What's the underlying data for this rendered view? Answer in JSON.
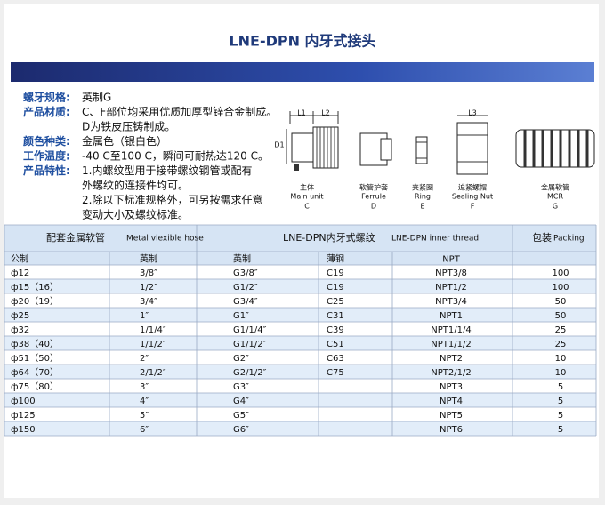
{
  "header": {
    "title": "LNE-DPN 内牙式接头"
  },
  "specs": [
    {
      "label": "螺牙规格:",
      "lines": [
        "英制G"
      ]
    },
    {
      "label": "产品材质:",
      "lines": [
        "C、F部位均采用优质加厚型锌合金制成。",
        "D为铁皮压铸制成。"
      ]
    },
    {
      "label": "颜色种类:",
      "lines": [
        "金属色（银白色）"
      ]
    },
    {
      "label": "工作温度:",
      "lines": [
        "-40 C至100 C，瞬间可耐热达120 C。"
      ]
    },
    {
      "label": "产品特性:",
      "lines": [
        "1.内螺纹型用于接带螺纹钢管或配有",
        "外螺纹的连接件均可。",
        "2.除以下标准规格外，可另按需求任意",
        "变动大小及螺纹标准。"
      ]
    }
  ],
  "diagram": {
    "dims": [
      "L1",
      "L2",
      "D1",
      "L3"
    ],
    "parts": [
      {
        "name_cn": "主体",
        "name_en": "Main unit",
        "code": "C"
      },
      {
        "name_cn": "软管护套",
        "name_en": "Ferrule",
        "code": "D"
      },
      {
        "name_cn": "夹紧圈",
        "name_en": "Ring",
        "code": "E"
      },
      {
        "name_cn": "迫紧螺帽",
        "name_en": "Sealing Nut",
        "code": "F"
      },
      {
        "name_cn": "金属软管",
        "name_en": "MCR",
        "code": "G"
      }
    ]
  },
  "table": {
    "groups": [
      {
        "cn": "配套金属软管",
        "en": "Metal vlexible hose"
      },
      {
        "cn": "LNE-DPN内牙式螺纹",
        "en": "LNE-DPN inner thread"
      },
      {
        "cn": "包装",
        "en": "Packing"
      }
    ],
    "columns": [
      "公制",
      "英制",
      "英制",
      "薄钢",
      "NPT"
    ],
    "rows": [
      [
        "ф12",
        "3/8″",
        "G3/8″",
        "C19",
        "NPT3/8",
        100
      ],
      [
        "ф15（16）",
        "1/2″",
        "G1/2″",
        "C19",
        "NPT1/2",
        100
      ],
      [
        "ф20（19）",
        "3/4″",
        "G3/4″",
        "C25",
        "NPT3/4",
        50
      ],
      [
        "ф25",
        "1″",
        "G1″",
        "C31",
        "NPT1",
        50
      ],
      [
        "ф32",
        "1/1/4″",
        "G1/1/4″",
        "C39",
        "NPT1/1/4",
        25
      ],
      [
        "ф38（40）",
        "1/1/2″",
        "G1/1/2″",
        "C51",
        "NPT1/1/2",
        25
      ],
      [
        "ф51（50）",
        "2″",
        "G2″",
        "C63",
        "NPT2",
        10
      ],
      [
        "ф64（70）",
        "2/1/2″",
        "G2/1/2″",
        "C75",
        "NPT2/1/2",
        10
      ],
      [
        "ф75（80）",
        "3″",
        "G3″",
        null,
        "NPT3",
        5
      ],
      [
        "ф100",
        "4″",
        "G4″",
        null,
        "NPT4",
        5
      ],
      [
        "ф125",
        "5″",
        "G5″",
        null,
        "NPT5",
        5
      ],
      [
        "ф150",
        "6″",
        "G6″",
        null,
        "NPT6",
        5
      ]
    ]
  }
}
